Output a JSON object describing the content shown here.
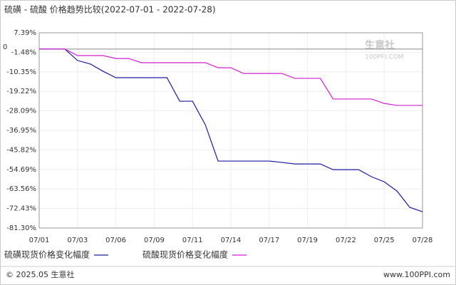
{
  "chart_data": {
    "type": "line",
    "title": "硫磺 - 硫酸 价格趋势比较(2022-07-01 - 2022-07-28)",
    "categories": [
      "07/01",
      null,
      null,
      "07/03",
      null,
      null,
      "07/06",
      null,
      null,
      "07/09",
      null,
      null,
      "07/11",
      null,
      null,
      "07/14",
      null,
      null,
      "07/17",
      null,
      null,
      "07/19",
      null,
      null,
      "07/22",
      null,
      null,
      "07/25",
      null,
      null,
      "07/28"
    ],
    "series": [
      {
        "name": "硫磺现货价格变化幅度",
        "color": "#1a1aa0",
        "values": [
          0,
          0,
          0,
          -5.2,
          -6.8,
          -10.1,
          -13.0,
          -13.0,
          -13.0,
          -13.0,
          -13.0,
          -23.7,
          -23.7,
          -34.4,
          -50.9,
          -50.9,
          -50.9,
          -50.9,
          -50.9,
          -51.5,
          -52.2,
          -52.2,
          -52.2,
          -54.8,
          -54.8,
          -54.8,
          -58.0,
          -60.3,
          -64.5,
          -71.9,
          -73.9
        ]
      },
      {
        "name": "硫酸现货价格变化幅度",
        "color": "#d020d0",
        "values": [
          0,
          0,
          0,
          -2.97,
          -2.97,
          -2.97,
          -4.3,
          -4.3,
          -6.2,
          -6.2,
          -6.2,
          -6.2,
          -6.2,
          -6.2,
          -8.5,
          -8.5,
          -11.1,
          -11.1,
          -11.1,
          -11.1,
          -13.3,
          -13.3,
          -13.3,
          -22.7,
          -22.7,
          -22.7,
          -22.7,
          -24.7,
          -25.6,
          -25.6,
          -25.6
        ]
      }
    ],
    "ylim": [
      -81.3,
      7.39
    ],
    "yticks": [
      {
        "value": 7.39,
        "label": "7.39%"
      },
      {
        "value": -1.48,
        "label": "-1.48%"
      },
      {
        "value": -10.35,
        "label": "-10.35%"
      },
      {
        "value": -19.22,
        "label": "-19.22%"
      },
      {
        "value": -28.09,
        "label": "-28.09%"
      },
      {
        "value": -36.95,
        "label": "-36.95%"
      },
      {
        "value": -45.82,
        "label": "-45.82%"
      },
      {
        "value": -54.69,
        "label": "-54.69%"
      },
      {
        "value": -63.56,
        "label": "-63.56%"
      },
      {
        "value": -72.43,
        "label": "-72.43%"
      },
      {
        "value": -81.3,
        "label": "-81.30%"
      }
    ],
    "zero_line": 0,
    "grid": true,
    "watermark": "生意社",
    "watermark_sub": "100PPI.COM"
  },
  "footer": {
    "left": "© 2025.05 生意社",
    "right": "www.100PPI.com"
  }
}
